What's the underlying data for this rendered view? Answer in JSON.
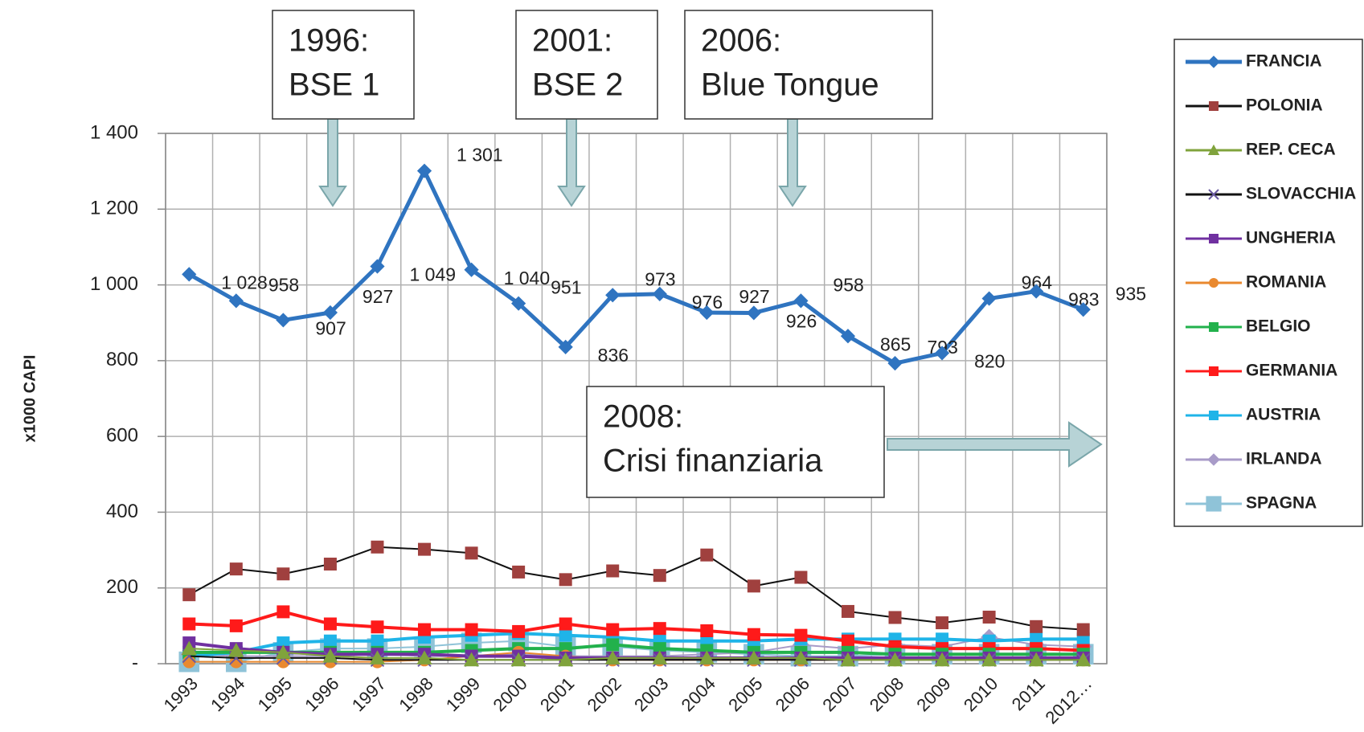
{
  "chart_data": {
    "type": "line",
    "y_label": "x1000 CAPI",
    "categories": [
      "1993",
      "1994",
      "1995",
      "1996",
      "1997",
      "1998",
      "1999",
      "2000",
      "2001",
      "2002",
      "2003",
      "2004",
      "2005",
      "2006",
      "2007",
      "2008",
      "2009",
      "2010",
      "2011",
      "2012…"
    ],
    "ylim": [
      0,
      1400
    ],
    "yticks": [
      {
        "value": 0,
        "label": "-"
      },
      200,
      400,
      600,
      800,
      {
        "value": 1000,
        "label": "1 000"
      },
      {
        "value": 1200,
        "label": "1 200"
      },
      {
        "value": 1400,
        "label": "1 400"
      }
    ],
    "grid": true,
    "legend": "right",
    "series": [
      {
        "name": "FRANCIA",
        "color": "#2f74c0",
        "marker": "diamond",
        "values": [
          1028,
          958,
          907,
          927,
          1049,
          1301,
          1040,
          951,
          836,
          973,
          976,
          927,
          926,
          958,
          865,
          793,
          820,
          964,
          983,
          935
        ],
        "value_labels": [
          "1 028",
          "958",
          "907",
          "927",
          "1 049",
          "1 301",
          "1 040",
          "951",
          "836",
          "973",
          "976",
          "927",
          "926",
          "958",
          "865",
          "793",
          "820",
          "964",
          "983",
          "935"
        ]
      },
      {
        "name": "POLONIA",
        "color": "#a0403e",
        "marker": "square",
        "values": [
          182,
          250,
          237,
          263,
          308,
          302,
          292,
          242,
          222,
          245,
          233,
          287,
          205,
          228,
          138,
          122,
          108,
          123,
          98,
          90
        ]
      },
      {
        "name": "REP. CECA",
        "color": "#80a33c",
        "marker": "triangle",
        "values": [
          40,
          35,
          30,
          20,
          15,
          15,
          10,
          10,
          10,
          15,
          15,
          15,
          15,
          15,
          10,
          10,
          10,
          10,
          10,
          10
        ]
      },
      {
        "name": "SLOVACCHIA",
        "color": "#6a5aa0",
        "marker": "x",
        "values": [
          20,
          15,
          15,
          15,
          10,
          10,
          10,
          10,
          10,
          10,
          10,
          10,
          10,
          10,
          10,
          10,
          10,
          10,
          10,
          10
        ]
      },
      {
        "name": "UNGHERIA",
        "color": "#7030a0",
        "marker": "square",
        "values": [
          55,
          40,
          30,
          25,
          25,
          25,
          20,
          20,
          15,
          15,
          15,
          15,
          15,
          15,
          15,
          15,
          15,
          15,
          15,
          15
        ]
      },
      {
        "name": "ROMANIA",
        "color": "#e9892f",
        "marker": "circle",
        "values": [
          5,
          5,
          5,
          5,
          5,
          10,
          20,
          30,
          20,
          10,
          10,
          10,
          10,
          10,
          10,
          10,
          10,
          10,
          10,
          10
        ]
      },
      {
        "name": "BELGIO",
        "color": "#22b14c",
        "marker": "square",
        "values": [
          30,
          30,
          30,
          30,
          30,
          30,
          35,
          40,
          40,
          50,
          40,
          35,
          30,
          30,
          30,
          25,
          25,
          25,
          25,
          25
        ]
      },
      {
        "name": "GERMANIA",
        "color": "#ff1a1a",
        "marker": "square",
        "values": [
          105,
          100,
          137,
          105,
          97,
          90,
          90,
          85,
          105,
          90,
          93,
          87,
          77,
          75,
          60,
          45,
          40,
          40,
          40,
          35
        ]
      },
      {
        "name": "AUSTRIA",
        "color": "#1fb4e8",
        "marker": "square",
        "values": [
          20,
          30,
          55,
          60,
          60,
          70,
          75,
          80,
          75,
          70,
          60,
          60,
          60,
          65,
          65,
          65,
          65,
          60,
          65,
          65
        ]
      },
      {
        "name": "IRLANDA",
        "color": "#a89bc8",
        "marker": "diamond",
        "values": [
          25,
          20,
          20,
          20,
          25,
          20,
          20,
          25,
          20,
          20,
          20,
          25,
          30,
          50,
          40,
          50,
          45,
          70,
          50,
          45
        ]
      },
      {
        "name": "SPAGNA",
        "color": "#8fc3d8",
        "marker": "bigsquare",
        "values": [
          5,
          5,
          30,
          40,
          40,
          45,
          55,
          60,
          45,
          45,
          35,
          30,
          25,
          20,
          20,
          25,
          25,
          25,
          25,
          25
        ]
      }
    ],
    "annotations": [
      {
        "lines": [
          "1996:",
          "BSE 1"
        ]
      },
      {
        "lines": [
          "2001:",
          "BSE 2"
        ]
      },
      {
        "lines": [
          "2006:",
          "Blue Tongue"
        ]
      },
      {
        "lines": [
          "2008:",
          "Crisi finanziaria"
        ]
      }
    ]
  }
}
